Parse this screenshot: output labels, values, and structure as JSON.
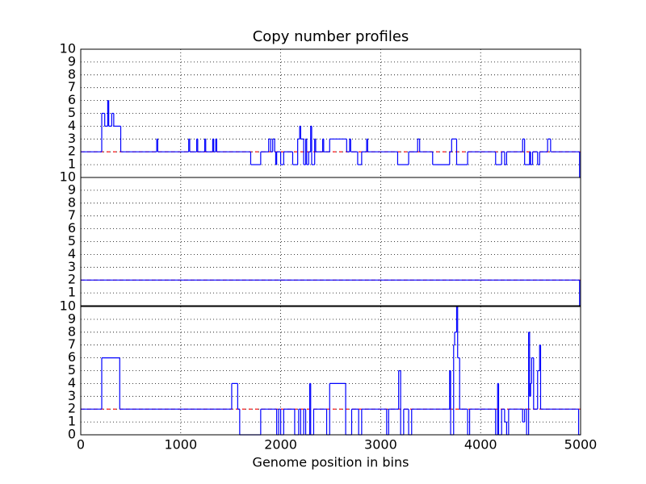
{
  "chart_data": [
    {
      "type": "step",
      "title": "Copy number profiles",
      "xlim": [
        0,
        5000
      ],
      "xticks": [
        0,
        1000,
        2000,
        3000,
        4000,
        5000
      ],
      "ylim": [
        0,
        10
      ],
      "yticks": [
        1,
        2,
        3,
        4,
        5,
        6,
        7,
        8,
        9,
        10
      ],
      "grid": true,
      "series": [
        {
          "color": "#ff0000",
          "dashed": true,
          "x": [
            0,
            4990
          ],
          "values": [
            2,
            2
          ]
        },
        {
          "color": "#0000ff",
          "x": [
            0,
            210,
            240,
            270,
            280,
            310,
            330,
            400,
            760,
            770,
            1080,
            1090,
            1160,
            1170,
            1240,
            1250,
            1320,
            1330,
            1350,
            1360,
            1700,
            1800,
            1880,
            1900,
            1920,
            1940,
            1950,
            1960,
            2000,
            2030,
            2120,
            2170,
            2190,
            2200,
            2230,
            2250,
            2260,
            2280,
            2300,
            2310,
            2340,
            2350,
            2420,
            2430,
            2490,
            2660,
            2690,
            2700,
            2770,
            2810,
            2860,
            2870,
            3170,
            3280,
            3370,
            3390,
            3520,
            3550,
            3690,
            3710,
            3760,
            3870,
            4150,
            4210,
            4240,
            4260,
            4420,
            4440,
            4490,
            4500,
            4520,
            4570,
            4590,
            4670,
            4700,
            4990
          ],
          "values": [
            2,
            5,
            4,
            6,
            4,
            5,
            4,
            2,
            3,
            2,
            3,
            2,
            3,
            2,
            3,
            2,
            3,
            2,
            3,
            2,
            1,
            2,
            3,
            2,
            3,
            2,
            1,
            2,
            1,
            2,
            1,
            3,
            4,
            3,
            1,
            3,
            1,
            2,
            4,
            1,
            3,
            2,
            3,
            2,
            3,
            2,
            3,
            2,
            1,
            2,
            3,
            2,
            1,
            2,
            3,
            2,
            1,
            1,
            2,
            3,
            1,
            2,
            1,
            2,
            1,
            2,
            3,
            1,
            2,
            1,
            2,
            1,
            2,
            3,
            2,
            0
          ]
        }
      ]
    },
    {
      "type": "step",
      "xlim": [
        0,
        5000
      ],
      "xticks": [
        0,
        1000,
        2000,
        3000,
        4000,
        5000
      ],
      "ylim": [
        0,
        10
      ],
      "yticks": [
        1,
        2,
        3,
        4,
        5,
        6,
        7,
        8,
        9,
        10
      ],
      "grid": true,
      "series": [
        {
          "color": "#ff0000",
          "dashed": true,
          "x": [
            0,
            4990
          ],
          "values": [
            2,
            2
          ]
        },
        {
          "color": "#0000ff",
          "x": [
            0,
            4990
          ],
          "values": [
            2,
            0
          ]
        }
      ]
    },
    {
      "type": "step",
      "xlabel": "Genome position in bins",
      "xlim": [
        0,
        5000
      ],
      "xticks": [
        0,
        1000,
        2000,
        3000,
        4000,
        5000
      ],
      "ylim": [
        0,
        10
      ],
      "yticks": [
        0,
        1,
        2,
        3,
        4,
        5,
        6,
        7,
        8,
        9,
        10
      ],
      "grid": true,
      "series": [
        {
          "color": "#ff0000",
          "dashed": true,
          "x": [
            0,
            4990
          ],
          "values": [
            2,
            2
          ]
        },
        {
          "color": "#0000ff",
          "x": [
            0,
            210,
            390,
            1510,
            1570,
            1590,
            1800,
            1960,
            1980,
            2000,
            2030,
            2140,
            2180,
            2200,
            2230,
            2250,
            2290,
            2300,
            2330,
            2460,
            2490,
            2650,
            2710,
            2780,
            2810,
            3060,
            3080,
            3180,
            3200,
            3230,
            3280,
            3310,
            3690,
            3700,
            3730,
            3740,
            3760,
            3770,
            3790,
            3870,
            3890,
            4150,
            4170,
            4180,
            4210,
            4240,
            4260,
            4280,
            4420,
            4440,
            4460,
            4480,
            4490,
            4500,
            4510,
            4530,
            4570,
            4590,
            4600,
            4980
          ],
          "values": [
            2,
            6,
            2,
            4,
            2,
            0,
            2,
            0,
            2,
            0,
            2,
            0,
            2,
            0,
            2,
            0,
            4,
            0,
            2,
            0,
            4,
            0,
            2,
            0,
            2,
            0,
            2,
            5,
            0,
            2,
            0,
            2,
            5,
            0,
            7,
            8,
            10,
            6,
            2,
            0,
            2,
            0,
            4,
            0,
            2,
            1,
            0,
            2,
            1,
            2,
            0,
            8,
            3,
            4,
            6,
            2,
            5,
            7,
            2,
            0
          ]
        }
      ]
    }
  ]
}
